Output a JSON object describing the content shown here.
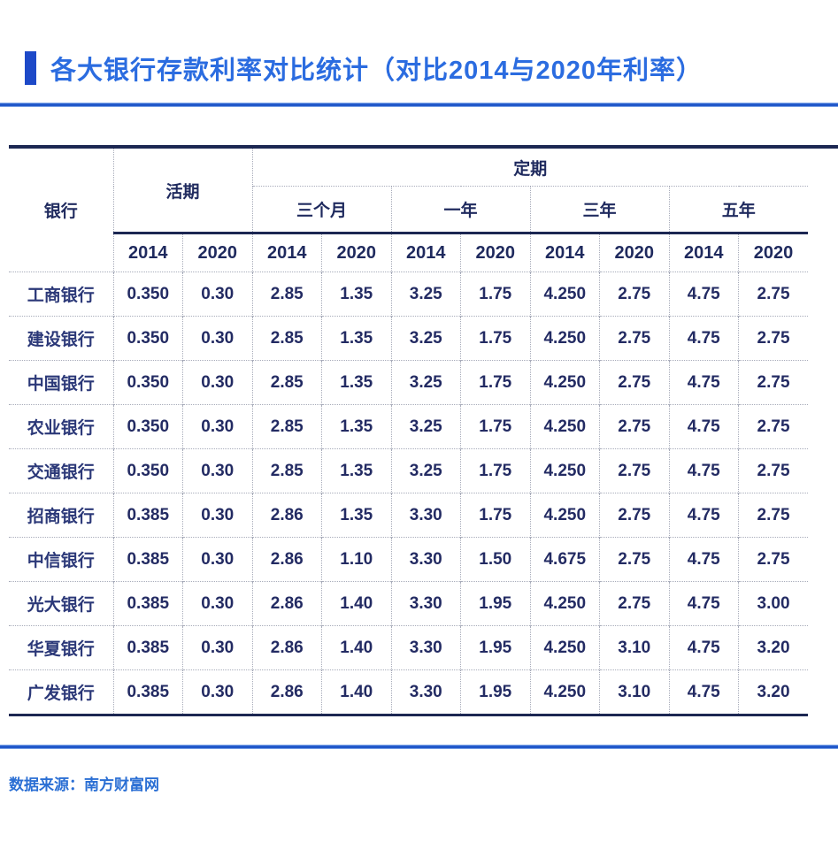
{
  "title": "各大银行存款利率对比统计（对比2014与2020年利率）",
  "footer": {
    "source_label": "数据来源：南方财富网"
  },
  "colors": {
    "title_blue": "#2b6ce0",
    "accent_bar_blue": "#1d49c8",
    "divider_blue": "#1c54c8",
    "table_border_navy": "#1c2752",
    "table_text_navy": "#232b63",
    "dotted_separator_gray": "#a8acba",
    "footer_blue": "#2b6fd4",
    "background": "#ffffff"
  },
  "table": {
    "bank_header": "银行",
    "demand_header": "活期",
    "fixed_header": "定期",
    "period_headers": [
      "三个月",
      "一年",
      "三年",
      "五年"
    ],
    "year_row": [
      "2014",
      "2020",
      "2014",
      "2020",
      "2014",
      "2020",
      "2014",
      "2020",
      "2014",
      "2020"
    ],
    "rows": [
      {
        "bank": "工商银行",
        "values": [
          "0.350",
          "0.30",
          "2.85",
          "1.35",
          "3.25",
          "1.75",
          "4.250",
          "2.75",
          "4.75",
          "2.75"
        ]
      },
      {
        "bank": "建设银行",
        "values": [
          "0.350",
          "0.30",
          "2.85",
          "1.35",
          "3.25",
          "1.75",
          "4.250",
          "2.75",
          "4.75",
          "2.75"
        ]
      },
      {
        "bank": "中国银行",
        "values": [
          "0.350",
          "0.30",
          "2.85",
          "1.35",
          "3.25",
          "1.75",
          "4.250",
          "2.75",
          "4.75",
          "2.75"
        ]
      },
      {
        "bank": "农业银行",
        "values": [
          "0.350",
          "0.30",
          "2.85",
          "1.35",
          "3.25",
          "1.75",
          "4.250",
          "2.75",
          "4.75",
          "2.75"
        ]
      },
      {
        "bank": "交通银行",
        "values": [
          "0.350",
          "0.30",
          "2.85",
          "1.35",
          "3.25",
          "1.75",
          "4.250",
          "2.75",
          "4.75",
          "2.75"
        ]
      },
      {
        "bank": "招商银行",
        "values": [
          "0.385",
          "0.30",
          "2.86",
          "1.35",
          "3.30",
          "1.75",
          "4.250",
          "2.75",
          "4.75",
          "2.75"
        ]
      },
      {
        "bank": "中信银行",
        "values": [
          "0.385",
          "0.30",
          "2.86",
          "1.10",
          "3.30",
          "1.50",
          "4.675",
          "2.75",
          "4.75",
          "2.75"
        ]
      },
      {
        "bank": "光大银行",
        "values": [
          "0.385",
          "0.30",
          "2.86",
          "1.40",
          "3.30",
          "1.95",
          "4.250",
          "2.75",
          "4.75",
          "3.00"
        ]
      },
      {
        "bank": "华夏银行",
        "values": [
          "0.385",
          "0.30",
          "2.86",
          "1.40",
          "3.30",
          "1.95",
          "4.250",
          "3.10",
          "4.75",
          "3.20"
        ]
      },
      {
        "bank": "广发银行",
        "values": [
          "0.385",
          "0.30",
          "2.86",
          "1.40",
          "3.30",
          "1.95",
          "4.250",
          "3.10",
          "4.75",
          "3.20"
        ]
      }
    ]
  },
  "chart_data": {
    "type": "table",
    "title": "各大银行存款利率对比统计（对比2014与2020年利率）",
    "source": "数据来源：南方财富网",
    "column_groups": [
      {
        "label": "活期",
        "span": 2
      },
      {
        "label": "定期",
        "span": 8,
        "subgroups": [
          {
            "label": "三个月",
            "span": 2
          },
          {
            "label": "一年",
            "span": 2
          },
          {
            "label": "三年",
            "span": 2
          },
          {
            "label": "五年",
            "span": 2
          }
        ]
      }
    ],
    "columns": [
      "银行",
      "活期 2014",
      "活期 2020",
      "三个月 2014",
      "三个月 2020",
      "一年 2014",
      "一年 2020",
      "三年 2014",
      "三年 2020",
      "五年 2014",
      "五年 2020"
    ],
    "rows": [
      [
        "工商银行",
        "0.350",
        "0.30",
        "2.85",
        "1.35",
        "3.25",
        "1.75",
        "4.250",
        "2.75",
        "4.75",
        "2.75"
      ],
      [
        "建设银行",
        "0.350",
        "0.30",
        "2.85",
        "1.35",
        "3.25",
        "1.75",
        "4.250",
        "2.75",
        "4.75",
        "2.75"
      ],
      [
        "中国银行",
        "0.350",
        "0.30",
        "2.85",
        "1.35",
        "3.25",
        "1.75",
        "4.250",
        "2.75",
        "4.75",
        "2.75"
      ],
      [
        "农业银行",
        "0.350",
        "0.30",
        "2.85",
        "1.35",
        "3.25",
        "1.75",
        "4.250",
        "2.75",
        "4.75",
        "2.75"
      ],
      [
        "交通银行",
        "0.350",
        "0.30",
        "2.85",
        "1.35",
        "3.25",
        "1.75",
        "4.250",
        "2.75",
        "4.75",
        "2.75"
      ],
      [
        "招商银行",
        "0.385",
        "0.30",
        "2.86",
        "1.35",
        "3.30",
        "1.75",
        "4.250",
        "2.75",
        "4.75",
        "2.75"
      ],
      [
        "中信银行",
        "0.385",
        "0.30",
        "2.86",
        "1.10",
        "3.30",
        "1.50",
        "4.675",
        "2.75",
        "4.75",
        "2.75"
      ],
      [
        "光大银行",
        "0.385",
        "0.30",
        "2.86",
        "1.40",
        "3.30",
        "1.95",
        "4.250",
        "2.75",
        "4.75",
        "3.00"
      ],
      [
        "华夏银行",
        "0.385",
        "0.30",
        "2.86",
        "1.40",
        "3.30",
        "1.95",
        "4.250",
        "3.10",
        "4.75",
        "3.20"
      ],
      [
        "广发银行",
        "0.385",
        "0.30",
        "2.86",
        "1.40",
        "3.30",
        "1.95",
        "4.250",
        "3.10",
        "4.75",
        "3.20"
      ]
    ]
  }
}
